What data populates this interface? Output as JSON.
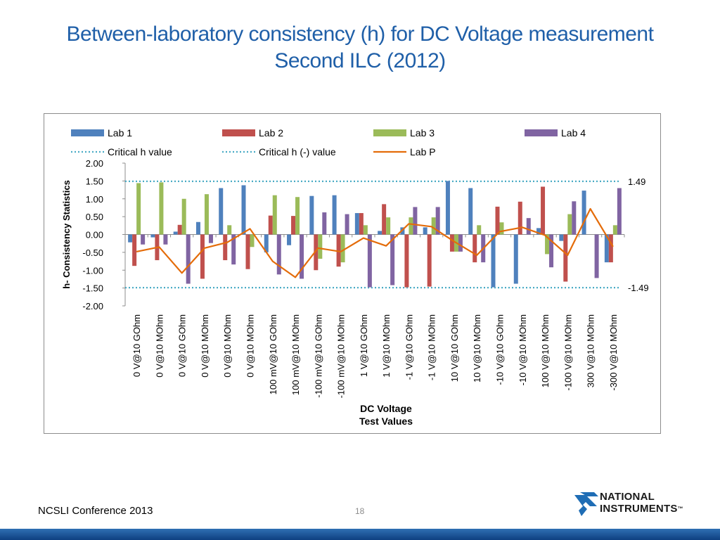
{
  "slide": {
    "title_line1": "Between-laboratory consistency (h) for DC Voltage measurement",
    "title_line2": "Second ILC (2012)",
    "footer": "NCSLI Conference 2013",
    "page_number": "18",
    "logo_line1": "NATIONAL",
    "logo_line2": "INSTRUMENTS",
    "logo_mark": "™",
    "title_color": "#1f5fa8"
  },
  "chart_data": {
    "type": "bar",
    "xlabel_line1": "DC Voltage",
    "xlabel_line2": "Test Values",
    "ylabel": "h- Consistency Statistics",
    "ylim": [
      -2.0,
      2.0
    ],
    "yticks": [
      "2.00",
      "1.50",
      "1.00",
      "0.50",
      "0.00",
      "-0.50",
      "-1.00",
      "-1.50",
      "-2.00"
    ],
    "legend_position": "top",
    "categories": [
      "0 V@10 GOhm",
      "0 V@10 MOhm",
      "0 V@10 GOhm",
      "0 V@10 MOhm",
      "0 V@10 MOhm",
      "0 V@10 MOhm",
      "100 mV@10 GOhm",
      "100 mV@10 MOhm",
      "-100 mV@10 GOhm",
      "-100 mV@10 MOhm",
      "1 V@10 GOhm",
      "1 V@10 MOhm",
      "-1 V@10 GOhm",
      "-1 V@10 MOhm",
      "10 V@10 GOhm",
      "10 V@10 MOhm",
      "-10 V@10 GOhm",
      "-10 V@10 MOhm",
      "100 V@10 MOhm",
      "-100 V@10 MOhm",
      "300 V@10 MOhm",
      "-300 V@10 MOhm"
    ],
    "series": [
      {
        "name": "Lab 1",
        "color": "#4f81bd",
        "values": [
          -0.22,
          -0.08,
          0.08,
          0.35,
          1.3,
          1.38,
          -0.5,
          -0.3,
          1.08,
          1.1,
          0.6,
          0.1,
          0.2,
          0.2,
          1.5,
          1.3,
          -1.48,
          -1.38,
          0.18,
          -0.18,
          1.23,
          -0.78
        ]
      },
      {
        "name": "Lab 2",
        "color": "#c0504d",
        "values": [
          -0.88,
          -0.72,
          0.27,
          -1.24,
          -0.72,
          -0.97,
          0.53,
          0.52,
          -1.0,
          -0.9,
          0.6,
          0.85,
          -1.48,
          -1.46,
          -0.48,
          -0.78,
          0.78,
          0.92,
          1.34,
          -1.32,
          0.0,
          -0.78
        ]
      },
      {
        "name": "Lab 3",
        "color": "#9bbb59",
        "values": [
          1.44,
          1.46,
          1.0,
          1.13,
          0.26,
          -0.35,
          1.1,
          1.05,
          -0.68,
          -0.78,
          0.26,
          0.48,
          0.48,
          0.48,
          -0.48,
          0.26,
          0.34,
          0.0,
          -0.55,
          0.57,
          0.0,
          0.26
        ]
      },
      {
        "name": "Lab 4",
        "color": "#8064a2",
        "values": [
          -0.28,
          -0.28,
          -1.38,
          -0.24,
          -0.84,
          0.0,
          -1.12,
          -1.24,
          0.62,
          0.57,
          -1.48,
          -1.42,
          0.77,
          0.77,
          -0.48,
          -0.78,
          0.0,
          0.46,
          -0.92,
          0.93,
          -1.22,
          1.3
        ]
      }
    ],
    "lab_p": {
      "name": "Lab P",
      "color": "#e46c0a",
      "values": [
        -0.48,
        -0.35,
        -1.08,
        -0.38,
        -0.22,
        0.16,
        -0.75,
        -1.2,
        -0.38,
        -0.48,
        -0.1,
        -0.32,
        0.3,
        0.22,
        -0.2,
        -0.58,
        0.08,
        0.2,
        -0.02,
        -0.58,
        0.72,
        -0.34
      ]
    },
    "critical": {
      "name": "Critical h value",
      "value": 1.49,
      "label": "1.49",
      "color": "#4bacc6"
    },
    "critical_neg": {
      "name": "Critical h (-) value",
      "value": -1.49,
      "label": "-1.49",
      "color": "#4bacc6"
    }
  }
}
